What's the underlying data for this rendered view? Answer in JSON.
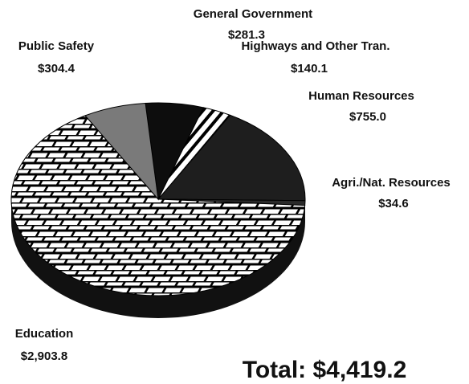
{
  "chart_data": {
    "type": "pie",
    "categories": [
      "General Government",
      "Highways and Other Tran.",
      "Human Resources",
      "Agri./Nat. Resources",
      "Education",
      "Public Safety"
    ],
    "values": [
      281.3,
      140.1,
      755.0,
      34.6,
      2903.8,
      304.4
    ],
    "value_labels": [
      "$281.3",
      "$140.1",
      "$755.0",
      "$34.6",
      "$2,903.8",
      "$304.4"
    ],
    "colors": [
      "#0d0d0d",
      "#ffffff",
      "#1e1e1e",
      "#2a2a2a",
      "#ffffff",
      "#7a7a7a"
    ],
    "annotation": "Total: $4,419.2"
  }
}
